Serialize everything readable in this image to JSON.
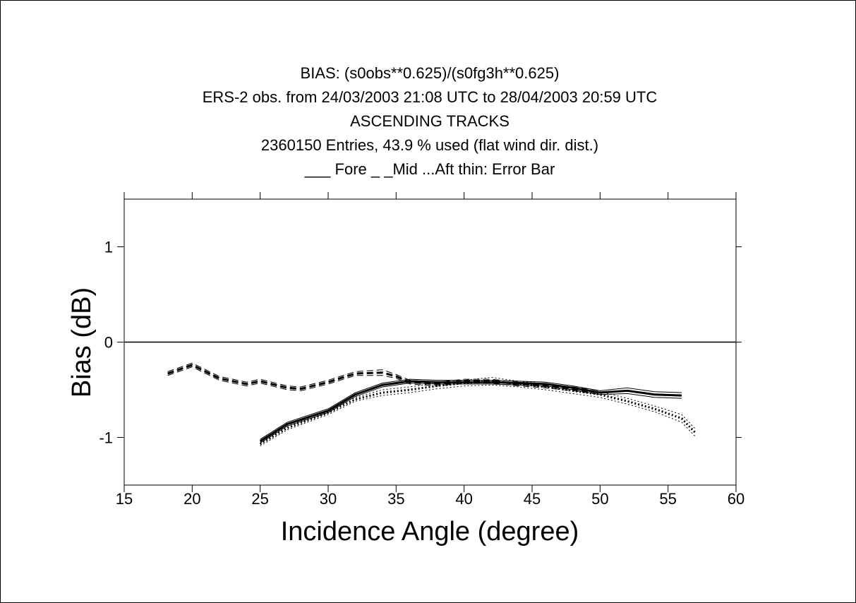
{
  "chart_data": {
    "type": "line",
    "title": [
      "BIAS: (s0obs**0.625)/(s0fg3h**0.625)",
      "ERS-2 obs. from 24/03/2003  21:08 UTC to 28/04/2003  20:59 UTC",
      "ASCENDING TRACKS",
      "2360150 Entries,   43.9 % used (flat wind dir. dist.)",
      "___ Fore _ _Mid ...Aft  thin: Error Bar"
    ],
    "xlabel": "Incidence Angle (degree)",
    "ylabel": "Bias  (dB)",
    "xlim": [
      15,
      60
    ],
    "xticks": [
      15,
      20,
      25,
      30,
      35,
      40,
      45,
      50,
      55,
      60
    ],
    "ylim": [
      -1.5,
      1.5
    ],
    "yticks": [
      -1,
      0,
      1
    ],
    "series": [
      {
        "color": "#000000",
        "dash": "solid",
        "x": [
          25,
          27,
          30,
          32,
          34,
          36,
          38,
          40,
          42,
          44,
          46,
          48,
          50,
          52,
          54,
          56
        ],
        "values": [
          -1.04,
          -0.86,
          -0.72,
          -0.55,
          -0.45,
          -0.41,
          -0.42,
          -0.42,
          -0.42,
          -0.43,
          -0.44,
          -0.48,
          -0.53,
          -0.51,
          -0.55,
          -0.56
        ],
        "errors": [
          0.02,
          0.02,
          0.02,
          0.02,
          0.02,
          0.02,
          0.02,
          0.02,
          0.02,
          0.02,
          0.02,
          0.02,
          0.02,
          0.03,
          0.03,
          0.03
        ]
      },
      {
        "color": "#000000",
        "dash": "dashed",
        "x": [
          18.2,
          20,
          22,
          24,
          25,
          27,
          28,
          30,
          32,
          34,
          35,
          36,
          38,
          40,
          42,
          44,
          46,
          48,
          50
        ],
        "values": [
          -0.33,
          -0.24,
          -0.38,
          -0.44,
          -0.41,
          -0.48,
          -0.49,
          -0.42,
          -0.33,
          -0.32,
          -0.36,
          -0.42,
          -0.44,
          -0.41,
          -0.41,
          -0.44,
          -0.46,
          -0.49,
          -0.53
        ],
        "errors": [
          0.02,
          0.02,
          0.02,
          0.02,
          0.02,
          0.02,
          0.02,
          0.02,
          0.02,
          0.03,
          0.02,
          0.02,
          0.02,
          0.02,
          0.02,
          0.02,
          0.02,
          0.02,
          0.02
        ]
      },
      {
        "color": "#000000",
        "dash": "dotted",
        "x": [
          25,
          27,
          30,
          32,
          34,
          36,
          38,
          40,
          42,
          44,
          46,
          48,
          50,
          52,
          54,
          56,
          57
        ],
        "values": [
          -1.07,
          -0.9,
          -0.74,
          -0.6,
          -0.53,
          -0.5,
          -0.46,
          -0.43,
          -0.41,
          -0.44,
          -0.47,
          -0.51,
          -0.55,
          -0.62,
          -0.7,
          -0.8,
          -0.95
        ],
        "errors": [
          0.02,
          0.02,
          0.02,
          0.02,
          0.03,
          0.03,
          0.03,
          0.03,
          0.04,
          0.03,
          0.03,
          0.03,
          0.03,
          0.03,
          0.03,
          0.04,
          0.04
        ]
      }
    ]
  }
}
